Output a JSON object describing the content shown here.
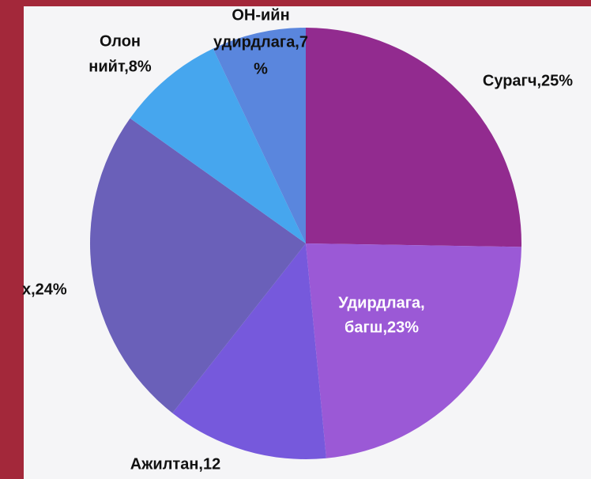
{
  "chart_data": {
    "type": "pie",
    "labels": [
      [
        "Сурагч,25%"
      ],
      [
        "Удирдлага,",
        "багш,23%"
      ],
      [
        "Ажилтан,12"
      ],
      [
        "х,24%"
      ],
      [
        "Олон",
        "нийт,8%"
      ],
      [
        "ОН-ийн",
        "удирдлага,7",
        "%"
      ]
    ],
    "values": [
      25,
      23,
      12,
      24,
      8,
      7
    ],
    "colors": [
      "#922b8f",
      "#9b59d6",
      "#7659dc",
      "#6a60b9",
      "#46a6ee",
      "#5a86dd"
    ],
    "label_colors": [
      "#111111",
      "#ffffff",
      "#111111",
      "#111111",
      "#111111",
      "#111111"
    ]
  }
}
